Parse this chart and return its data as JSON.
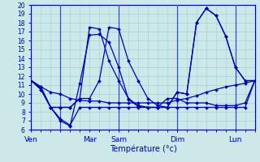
{
  "xlabel": "Température (°c)",
  "ylim": [
    6,
    20
  ],
  "yticks": [
    6,
    7,
    8,
    9,
    10,
    11,
    12,
    13,
    14,
    15,
    16,
    17,
    18,
    19,
    20
  ],
  "xtick_positions": [
    0,
    3,
    6,
    9,
    12,
    15,
    18,
    21
  ],
  "xtick_labels": [
    "Ven",
    "",
    "Mar",
    "Sam",
    "",
    "Dim",
    "",
    "Lun"
  ],
  "vlines": [
    3,
    9,
    15,
    21
  ],
  "bg": "#cce8e8",
  "grid_color": "#a8cece",
  "lc": "#0000bb",
  "xlim": [
    0,
    23
  ],
  "series": [
    {
      "x": [
        0,
        1,
        2,
        3,
        4,
        5,
        6,
        7,
        8,
        9,
        10,
        11,
        12,
        13,
        14,
        15,
        16,
        17,
        18,
        19,
        20,
        21,
        22,
        23
      ],
      "y": [
        11.5,
        10.8,
        8.5,
        7.2,
        6.5,
        8.5,
        8.5,
        8.5,
        8.5,
        8.5,
        8.5,
        8.5,
        8.5,
        8.5,
        8.5,
        8.5,
        8.5,
        8.5,
        8.5,
        8.5,
        8.5,
        8.5,
        8.5,
        11.5
      ]
    },
    {
      "x": [
        0,
        1,
        2,
        3,
        4,
        5,
        6,
        7,
        8,
        9,
        10,
        11,
        12,
        13,
        14,
        15,
        16,
        17,
        18,
        19,
        20,
        21,
        22,
        23
      ],
      "y": [
        11.5,
        10.8,
        10.2,
        10.0,
        9.5,
        9.3,
        9.2,
        9.2,
        9.0,
        9.0,
        9.0,
        9.0,
        9.0,
        9.0,
        9.0,
        9.3,
        9.5,
        9.8,
        10.2,
        10.5,
        10.8,
        11.0,
        11.2,
        11.5
      ]
    },
    {
      "x": [
        0,
        1,
        2,
        3,
        4,
        5,
        6,
        7,
        8,
        9,
        10,
        11,
        12,
        13,
        14,
        15,
        16,
        17,
        18,
        19,
        20,
        21,
        22,
        23
      ],
      "y": [
        11.5,
        10.7,
        8.5,
        7.0,
        6.4,
        11.2,
        16.6,
        16.7,
        15.8,
        13.0,
        9.4,
        8.6,
        8.5,
        8.5,
        9.5,
        9.5,
        9.0,
        9.0,
        9.0,
        8.7,
        8.7,
        8.7,
        9.0,
        11.5
      ]
    },
    {
      "x": [
        0,
        1,
        2,
        3,
        4,
        5,
        6,
        7,
        8,
        9,
        10,
        11,
        12,
        13,
        14,
        15,
        16,
        17,
        18,
        19,
        20,
        21,
        22,
        23
      ],
      "y": [
        11.5,
        10.5,
        8.5,
        8.5,
        8.5,
        9.5,
        17.5,
        17.3,
        13.7,
        11.5,
        9.5,
        8.7,
        8.5,
        8.5,
        8.5,
        10.2,
        10.0,
        18.0,
        19.6,
        18.8,
        16.5,
        13.0,
        11.5,
        11.5
      ]
    },
    {
      "x": [
        0,
        1,
        2,
        3,
        4,
        5,
        6,
        7,
        8,
        9,
        10,
        11,
        12,
        13,
        14,
        15,
        16,
        17,
        18,
        19,
        20,
        21,
        22,
        23
      ],
      "y": [
        11.5,
        10.5,
        8.5,
        8.5,
        8.5,
        9.5,
        9.5,
        11.5,
        17.5,
        17.3,
        13.7,
        11.5,
        9.5,
        8.7,
        8.5,
        10.2,
        10.0,
        18.0,
        19.6,
        18.8,
        16.5,
        13.0,
        11.5,
        11.5
      ]
    }
  ]
}
